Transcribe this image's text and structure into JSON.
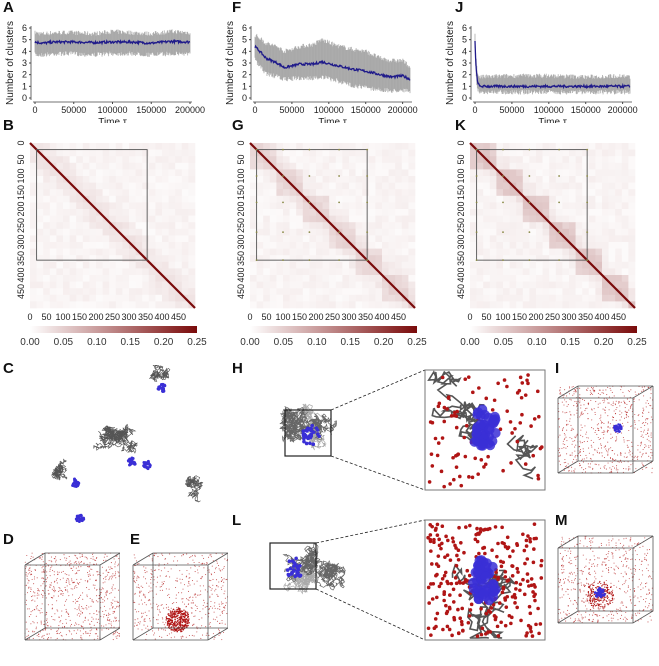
{
  "panel_letters": {
    "A": "A",
    "B": "B",
    "C": "C",
    "D": "D",
    "E": "E",
    "F": "F",
    "G": "G",
    "H": "H",
    "I": "I",
    "J": "J",
    "K": "K",
    "L": "L",
    "M": "M"
  },
  "colors": {
    "mean_line": "#1f1a8a",
    "band": "#9a9a9a",
    "heat_max": "#7a0a0a",
    "heat_min": "#ffffff",
    "polymer": "#555555",
    "cluster": "#3a2fd6",
    "protein": "#b01515"
  },
  "chart_data": [
    {
      "id": "A",
      "type": "line",
      "title": "",
      "xlabel": "Time  τ",
      "ylabel": "Number of clusters",
      "xlim": [
        0,
        200000
      ],
      "ylim": [
        0,
        6
      ],
      "xticks": [
        0,
        50000,
        100000,
        150000,
        200000
      ],
      "yticks": [
        0,
        1,
        2,
        3,
        4,
        5,
        6
      ],
      "series": [
        {
          "name": "mean",
          "x": [
            0,
            10000,
            25000,
            50000,
            75000,
            100000,
            125000,
            150000,
            175000,
            200000
          ],
          "values": [
            4.8,
            4.7,
            4.8,
            4.8,
            4.75,
            4.8,
            4.8,
            4.7,
            4.85,
            4.8
          ]
        },
        {
          "name": "band_low",
          "values": [
            3.9,
            3.9,
            4.0,
            4.0,
            3.9,
            4.0,
            4.0,
            3.9,
            4.0,
            4.0
          ]
        },
        {
          "name": "band_high",
          "values": [
            5.4,
            5.3,
            5.4,
            5.4,
            5.3,
            5.5,
            5.4,
            5.3,
            5.5,
            5.4
          ]
        }
      ]
    },
    {
      "id": "F",
      "type": "line",
      "title": "",
      "xlabel": "Time  τ",
      "ylabel": "Number of clusters",
      "xlim": [
        0,
        210000
      ],
      "ylim": [
        0,
        6
      ],
      "xticks": [
        0,
        50000,
        100000,
        150000,
        200000
      ],
      "yticks": [
        0,
        1,
        2,
        3,
        4,
        5,
        6
      ],
      "series": [
        {
          "name": "mean",
          "x": [
            0,
            5000,
            15000,
            30000,
            40000,
            60000,
            80000,
            90000,
            110000,
            130000,
            150000,
            170000,
            185000,
            200000,
            210000
          ],
          "values": [
            4.4,
            4.1,
            3.4,
            3.0,
            2.6,
            2.9,
            2.9,
            3.1,
            2.8,
            2.5,
            2.3,
            2.0,
            1.8,
            1.9,
            1.6
          ]
        },
        {
          "name": "band_low",
          "values": [
            3.5,
            3.0,
            2.3,
            2.0,
            1.8,
            1.9,
            1.9,
            2.0,
            1.7,
            1.3,
            1.1,
            0.9,
            0.8,
            0.9,
            0.7
          ]
        },
        {
          "name": "band_high",
          "values": [
            5.2,
            5.0,
            4.5,
            4.2,
            3.8,
            4.2,
            4.4,
            4.8,
            4.3,
            4.0,
            3.8,
            3.2,
            3.0,
            3.0,
            2.5
          ]
        }
      ]
    },
    {
      "id": "J",
      "type": "line",
      "title": "",
      "xlabel": "Time  τ",
      "ylabel": "Number of clusters",
      "xlim": [
        0,
        210000
      ],
      "ylim": [
        0,
        6
      ],
      "xticks": [
        0,
        50000,
        100000,
        150000,
        200000
      ],
      "yticks": [
        0,
        1,
        2,
        3,
        4,
        5,
        6
      ],
      "series": [
        {
          "name": "mean",
          "x": [
            0,
            1000,
            3000,
            6000,
            10000,
            50000,
            100000,
            150000,
            200000,
            210000
          ],
          "values": [
            4.9,
            3.0,
            1.5,
            1.0,
            1.0,
            1.0,
            1.0,
            1.0,
            1.0,
            1.0
          ]
        },
        {
          "name": "band_low",
          "values": [
            4.5,
            2.5,
            1.0,
            0.7,
            0.7,
            0.7,
            0.7,
            0.7,
            0.7,
            0.7
          ]
        },
        {
          "name": "band_high",
          "values": [
            5.3,
            3.5,
            2.0,
            1.6,
            1.6,
            1.7,
            1.7,
            1.6,
            1.7,
            1.6
          ]
        }
      ]
    },
    {
      "id": "B",
      "type": "heatmap",
      "title": "",
      "xticks": [
        0,
        50,
        100,
        150,
        200,
        250,
        300,
        350,
        400,
        450
      ],
      "yticks": [
        0,
        50,
        100,
        150,
        200,
        250,
        300,
        350,
        400,
        450
      ],
      "range": [
        0,
        500
      ],
      "highlight_box": [
        20,
        355
      ],
      "colorbar": {
        "min": 0,
        "max": 0.25,
        "ticks": [
          "0.00",
          "0.05",
          "0.10",
          "0.15",
          "0.20",
          "0.25"
        ]
      },
      "pattern": "diagonal-only"
    },
    {
      "id": "G",
      "type": "heatmap",
      "title": "",
      "xticks": [
        0,
        50,
        100,
        150,
        200,
        250,
        300,
        350,
        400,
        450
      ],
      "yticks": [
        0,
        50,
        100,
        150,
        200,
        250,
        300,
        350,
        400,
        450
      ],
      "range": [
        0,
        500
      ],
      "highlight_box": [
        20,
        355
      ],
      "colorbar": {
        "min": 0,
        "max": 0.25,
        "ticks": [
          "0.00",
          "0.05",
          "0.10",
          "0.15",
          "0.20",
          "0.25"
        ]
      },
      "pattern": "diagonal-with-blocks"
    },
    {
      "id": "K",
      "type": "heatmap",
      "title": "",
      "xticks": [
        0,
        50,
        100,
        150,
        200,
        250,
        300,
        350,
        400,
        450
      ],
      "yticks": [
        0,
        50,
        100,
        150,
        200,
        250,
        300,
        350,
        400,
        450
      ],
      "range": [
        0,
        500
      ],
      "highlight_box": [
        20,
        355
      ],
      "colorbar": {
        "min": 0,
        "max": 0.25,
        "ticks": [
          "0.00",
          "0.05",
          "0.10",
          "0.15",
          "0.20",
          "0.25"
        ]
      },
      "pattern": "diagonal-with-strong-blocks"
    }
  ],
  "renderings": {
    "C": {
      "type": "polymer-coil",
      "clusters": 4
    },
    "D": {
      "type": "box-uniform-dots"
    },
    "E": {
      "type": "box-dots-with-blob"
    },
    "H": {
      "type": "polymer-compact",
      "zoom_inset": true
    },
    "I": {
      "type": "box-dots-with-cluster"
    },
    "L": {
      "type": "polymer-compact",
      "zoom_inset": true
    },
    "M": {
      "type": "box-dots-centered-cluster"
    }
  }
}
